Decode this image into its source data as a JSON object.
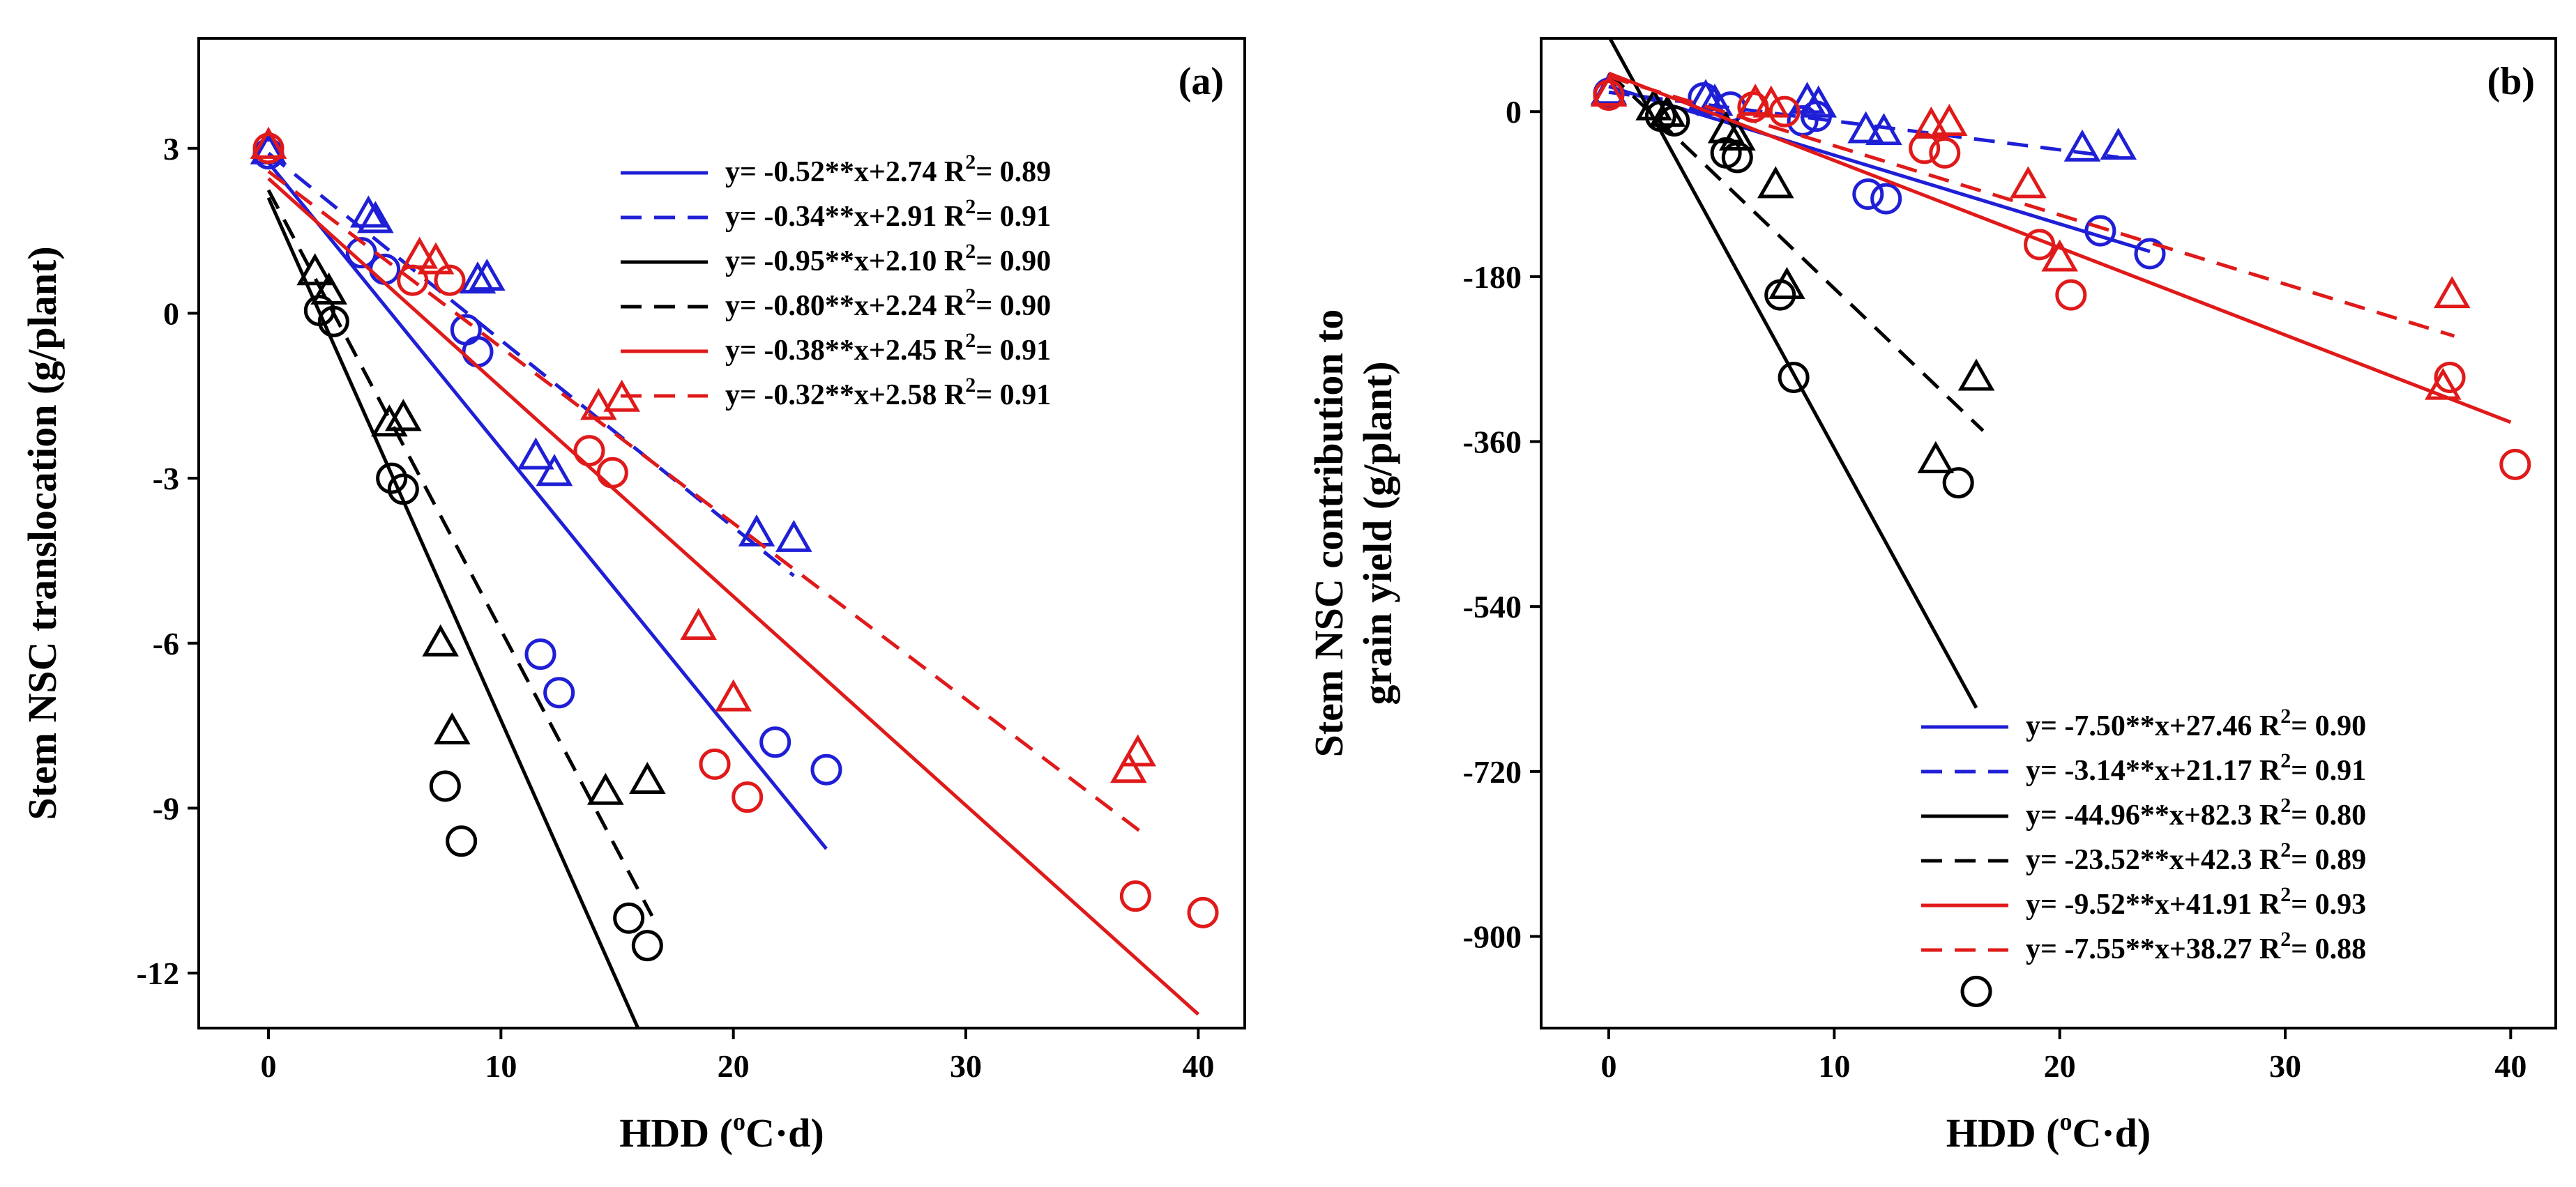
{
  "colors": {
    "blue": "#1f1fd6",
    "black": "#000000",
    "red": "#e01a1a"
  },
  "chart_data": [
    {
      "type": "scatter",
      "panel_label": "(a)",
      "title": "",
      "xlabel": "HDD (",
      "xlabel_sup": "o",
      "xlabel_tail": "C·d)",
      "ylabel": "Stem NSC translocation (g/plant)",
      "xlim": [
        -3,
        42
      ],
      "ylim": [
        -13,
        5
      ],
      "xticks": [
        0,
        10,
        20,
        30,
        40
      ],
      "yticks": [
        3,
        0,
        -3,
        -6,
        -9,
        -12
      ],
      "legend_position": "top-right",
      "series": [
        {
          "name": "y= -0.52**x+2.74 R",
          "r2": "= 0.89",
          "color": "blue",
          "marker": "circle",
          "dash": false,
          "points": [
            [
              0,
              2.9
            ],
            [
              4,
              1.1
            ],
            [
              5,
              0.8
            ],
            [
              8.5,
              -0.3
            ],
            [
              9,
              -0.7
            ],
            [
              11.7,
              -6.2
            ],
            [
              12.5,
              -6.9
            ],
            [
              21.8,
              -7.8
            ],
            [
              24,
              -8.3
            ]
          ],
          "line": [
            0,
            24
          ]
        },
        {
          "name": "y= -0.34**x+2.91 R",
          "r2": "= 0.91",
          "color": "blue",
          "marker": "triangle",
          "dash": true,
          "points": [
            [
              0,
              2.95
            ],
            [
              4.3,
              1.8
            ],
            [
              4.6,
              1.7
            ],
            [
              9,
              0.6
            ],
            [
              9.4,
              0.65
            ],
            [
              11.5,
              -2.6
            ],
            [
              12.3,
              -2.9
            ],
            [
              21,
              -4
            ],
            [
              22.6,
              -4.1
            ]
          ],
          "line": [
            0,
            22.6
          ]
        },
        {
          "name": "y= -0.95**x+2.10 R",
          "r2": "= 0.90",
          "color": "black",
          "marker": "circle",
          "dash": false,
          "points": [
            [
              2.2,
              0.05
            ],
            [
              2.8,
              -0.15
            ],
            [
              5.3,
              -3
            ],
            [
              5.8,
              -3.2
            ],
            [
              7.6,
              -8.6
            ],
            [
              8.3,
              -9.6
            ],
            [
              15.5,
              -11
            ],
            [
              16.3,
              -11.5
            ]
          ],
          "line": [
            0,
            16
          ]
        },
        {
          "name": "y= -0.80**x+2.24 R",
          "r2": "= 0.90",
          "color": "black",
          "marker": "triangle",
          "dash": true,
          "points": [
            [
              2,
              0.75
            ],
            [
              2.6,
              0.4
            ],
            [
              5.2,
              -2
            ],
            [
              5.8,
              -1.9
            ],
            [
              7.4,
              -6
            ],
            [
              7.9,
              -7.6
            ],
            [
              14.5,
              -8.7
            ],
            [
              16.3,
              -8.5
            ]
          ],
          "line": [
            0,
            16.5
          ]
        },
        {
          "name": "y= -0.38**x+2.45 R",
          "r2": "= 0.91",
          "color": "red",
          "marker": "circle",
          "dash": false,
          "points": [
            [
              0,
              3
            ],
            [
              6.2,
              0.6
            ],
            [
              7.8,
              0.6
            ],
            [
              13.8,
              -2.5
            ],
            [
              14.8,
              -2.9
            ],
            [
              19.2,
              -8.2
            ],
            [
              20.6,
              -8.8
            ],
            [
              37.3,
              -10.6
            ],
            [
              40.2,
              -10.9
            ]
          ],
          "line": [
            0,
            40
          ]
        },
        {
          "name": "y= -0.32**x+2.58 R",
          "r2": "= 0.91",
          "color": "red",
          "marker": "triangle",
          "dash": true,
          "points": [
            [
              0,
              3.05
            ],
            [
              6.5,
              1.05
            ],
            [
              7.2,
              0.95
            ],
            [
              14.2,
              -1.7
            ],
            [
              15.2,
              -1.55
            ],
            [
              18.5,
              -5.7
            ],
            [
              20,
              -7
            ],
            [
              37,
              -8.3
            ],
            [
              37.4,
              -8
            ]
          ],
          "line": [
            0,
            37.5
          ]
        }
      ]
    },
    {
      "type": "scatter",
      "panel_label": "(b)",
      "title": "",
      "xlabel": "HDD (",
      "xlabel_sup": "o",
      "xlabel_tail": "C·d)",
      "ylabel_line1": "Stem NSC contribution to",
      "ylabel_line2": "grain yield (g/plant)",
      "xlim": [
        -3,
        42
      ],
      "ylim": [
        -1000,
        80
      ],
      "xticks": [
        0,
        10,
        20,
        30,
        40
      ],
      "yticks": [
        0,
        -180,
        -360,
        -540,
        -720,
        -900
      ],
      "legend_position": "bottom-right",
      "series": [
        {
          "name": "y= -7.50**x+27.46 R",
          "r2": "= 0.90",
          "color": "blue",
          "marker": "circle",
          "dash": false,
          "points": [
            [
              0,
              20
            ],
            [
              4.2,
              15
            ],
            [
              5.4,
              5
            ],
            [
              8.6,
              -10
            ],
            [
              9.2,
              -5
            ],
            [
              11.5,
              -90
            ],
            [
              12.3,
              -95
            ],
            [
              21.8,
              -130
            ],
            [
              24,
              -155
            ]
          ],
          "line": [
            0,
            24
          ]
        },
        {
          "name": "y= -3.14**x+21.17 R",
          "r2": "= 0.91",
          "color": "blue",
          "marker": "triangle",
          "dash": true,
          "points": [
            [
              0,
              22
            ],
            [
              4.3,
              15
            ],
            [
              4.7,
              10
            ],
            [
              8.8,
              12
            ],
            [
              9.3,
              8
            ],
            [
              11.4,
              -20
            ],
            [
              12.2,
              -22
            ],
            [
              21,
              -40
            ],
            [
              22.6,
              -38
            ]
          ],
          "line": [
            0,
            22.6
          ]
        },
        {
          "name": "y= -44.96**x+82.3 R",
          "r2": "= 0.80",
          "color": "black",
          "marker": "circle",
          "dash": false,
          "points": [
            [
              2.3,
              -5
            ],
            [
              2.9,
              -10
            ],
            [
              5.2,
              -45
            ],
            [
              5.7,
              -50
            ],
            [
              7.6,
              -200
            ],
            [
              8.2,
              -290
            ],
            [
              15.5,
              -405
            ],
            [
              16.3,
              -960
            ]
          ],
          "line": [
            0,
            16.3
          ]
        },
        {
          "name": "y= -23.52**x+42.3 R",
          "r2": "= 0.89",
          "color": "black",
          "marker": "triangle",
          "dash": true,
          "points": [
            [
              2,
              5
            ],
            [
              2.6,
              -2
            ],
            [
              5.2,
              -20
            ],
            [
              5.7,
              -28
            ],
            [
              7.4,
              -80
            ],
            [
              7.9,
              -190
            ],
            [
              14.5,
              -380
            ],
            [
              16.3,
              -290
            ]
          ],
          "line": [
            0,
            16.6
          ]
        },
        {
          "name": "y= -9.52**x+41.91 R",
          "r2": "= 0.93",
          "color": "red",
          "marker": "circle",
          "dash": false,
          "points": [
            [
              0,
              18
            ],
            [
              6.4,
              5
            ],
            [
              7.8,
              0
            ],
            [
              14,
              -40
            ],
            [
              14.9,
              -45
            ],
            [
              19.1,
              -145
            ],
            [
              20.5,
              -200
            ],
            [
              37.3,
              -290
            ],
            [
              40.2,
              -385
            ]
          ],
          "line": [
            0,
            40
          ]
        },
        {
          "name": "y= -7.55**x+38.27 R",
          "r2": "= 0.88",
          "color": "red",
          "marker": "triangle",
          "dash": true,
          "points": [
            [
              0,
              20
            ],
            [
              6.5,
              10
            ],
            [
              7.2,
              8
            ],
            [
              14.3,
              -15
            ],
            [
              15.1,
              -12
            ],
            [
              18.6,
              -80
            ],
            [
              20,
              -160
            ],
            [
              37,
              -300
            ],
            [
              37.4,
              -200
            ]
          ],
          "line": [
            0,
            37.5
          ]
        }
      ]
    }
  ]
}
